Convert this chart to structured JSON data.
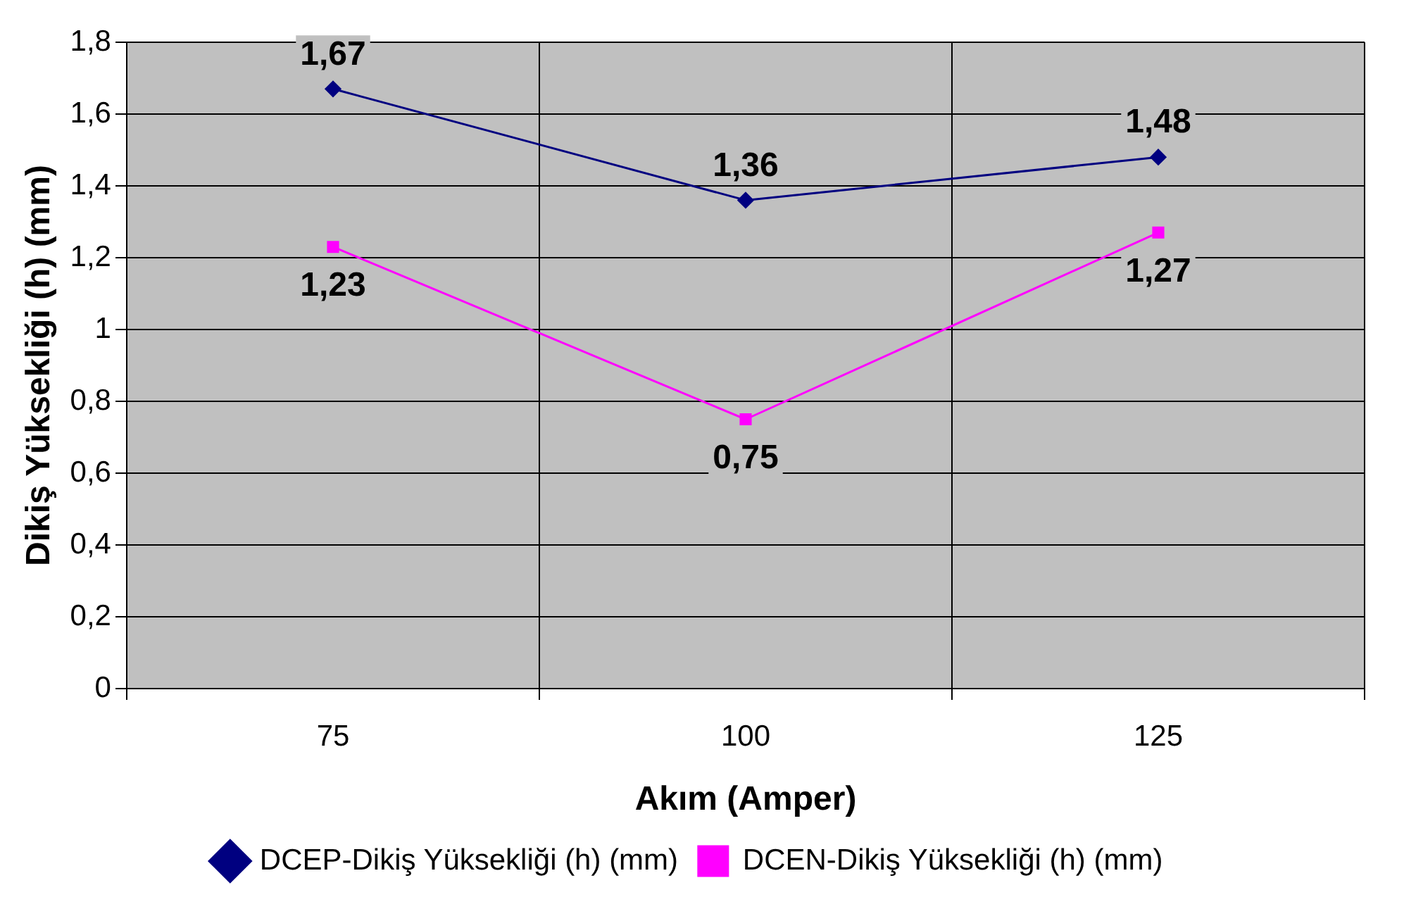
{
  "chart_data": {
    "type": "line",
    "xlabel": "Akım (Amper)",
    "ylabel": "Dikiş Yüksekliği (h) (mm)",
    "categories": [
      "75",
      "100",
      "125"
    ],
    "series": [
      {
        "name": "DCEP-Dikiş Yüksekliği (h) (mm)",
        "color": "#000080",
        "marker": "diamond",
        "values": [
          1.67,
          1.36,
          1.48
        ],
        "value_labels": [
          "1,67",
          "1,36",
          "1,48"
        ]
      },
      {
        "name": "DCEN-Dikiş Yüksekliği (h) (mm)",
        "color": "#ff00ff",
        "marker": "square",
        "values": [
          1.23,
          0.75,
          1.27
        ],
        "value_labels": [
          "1,23",
          "0,75",
          "1,27"
        ]
      }
    ],
    "ylim": [
      0,
      1.8
    ],
    "yticks": [
      0,
      {
        "value": 0.2,
        "label": "0,2"
      },
      {
        "value": 0.4,
        "label": "0,4"
      },
      {
        "value": 0.6,
        "label": "0,6"
      },
      {
        "value": 0.8,
        "label": "0,8"
      },
      1,
      {
        "value": 1.2,
        "label": "1,2"
      },
      {
        "value": 1.4,
        "label": "1,4"
      },
      {
        "value": 1.6,
        "label": "1,6"
      },
      {
        "value": 1.8,
        "label": "1,8"
      }
    ],
    "grid": true,
    "legend": "bottom",
    "line_style": "solid"
  }
}
